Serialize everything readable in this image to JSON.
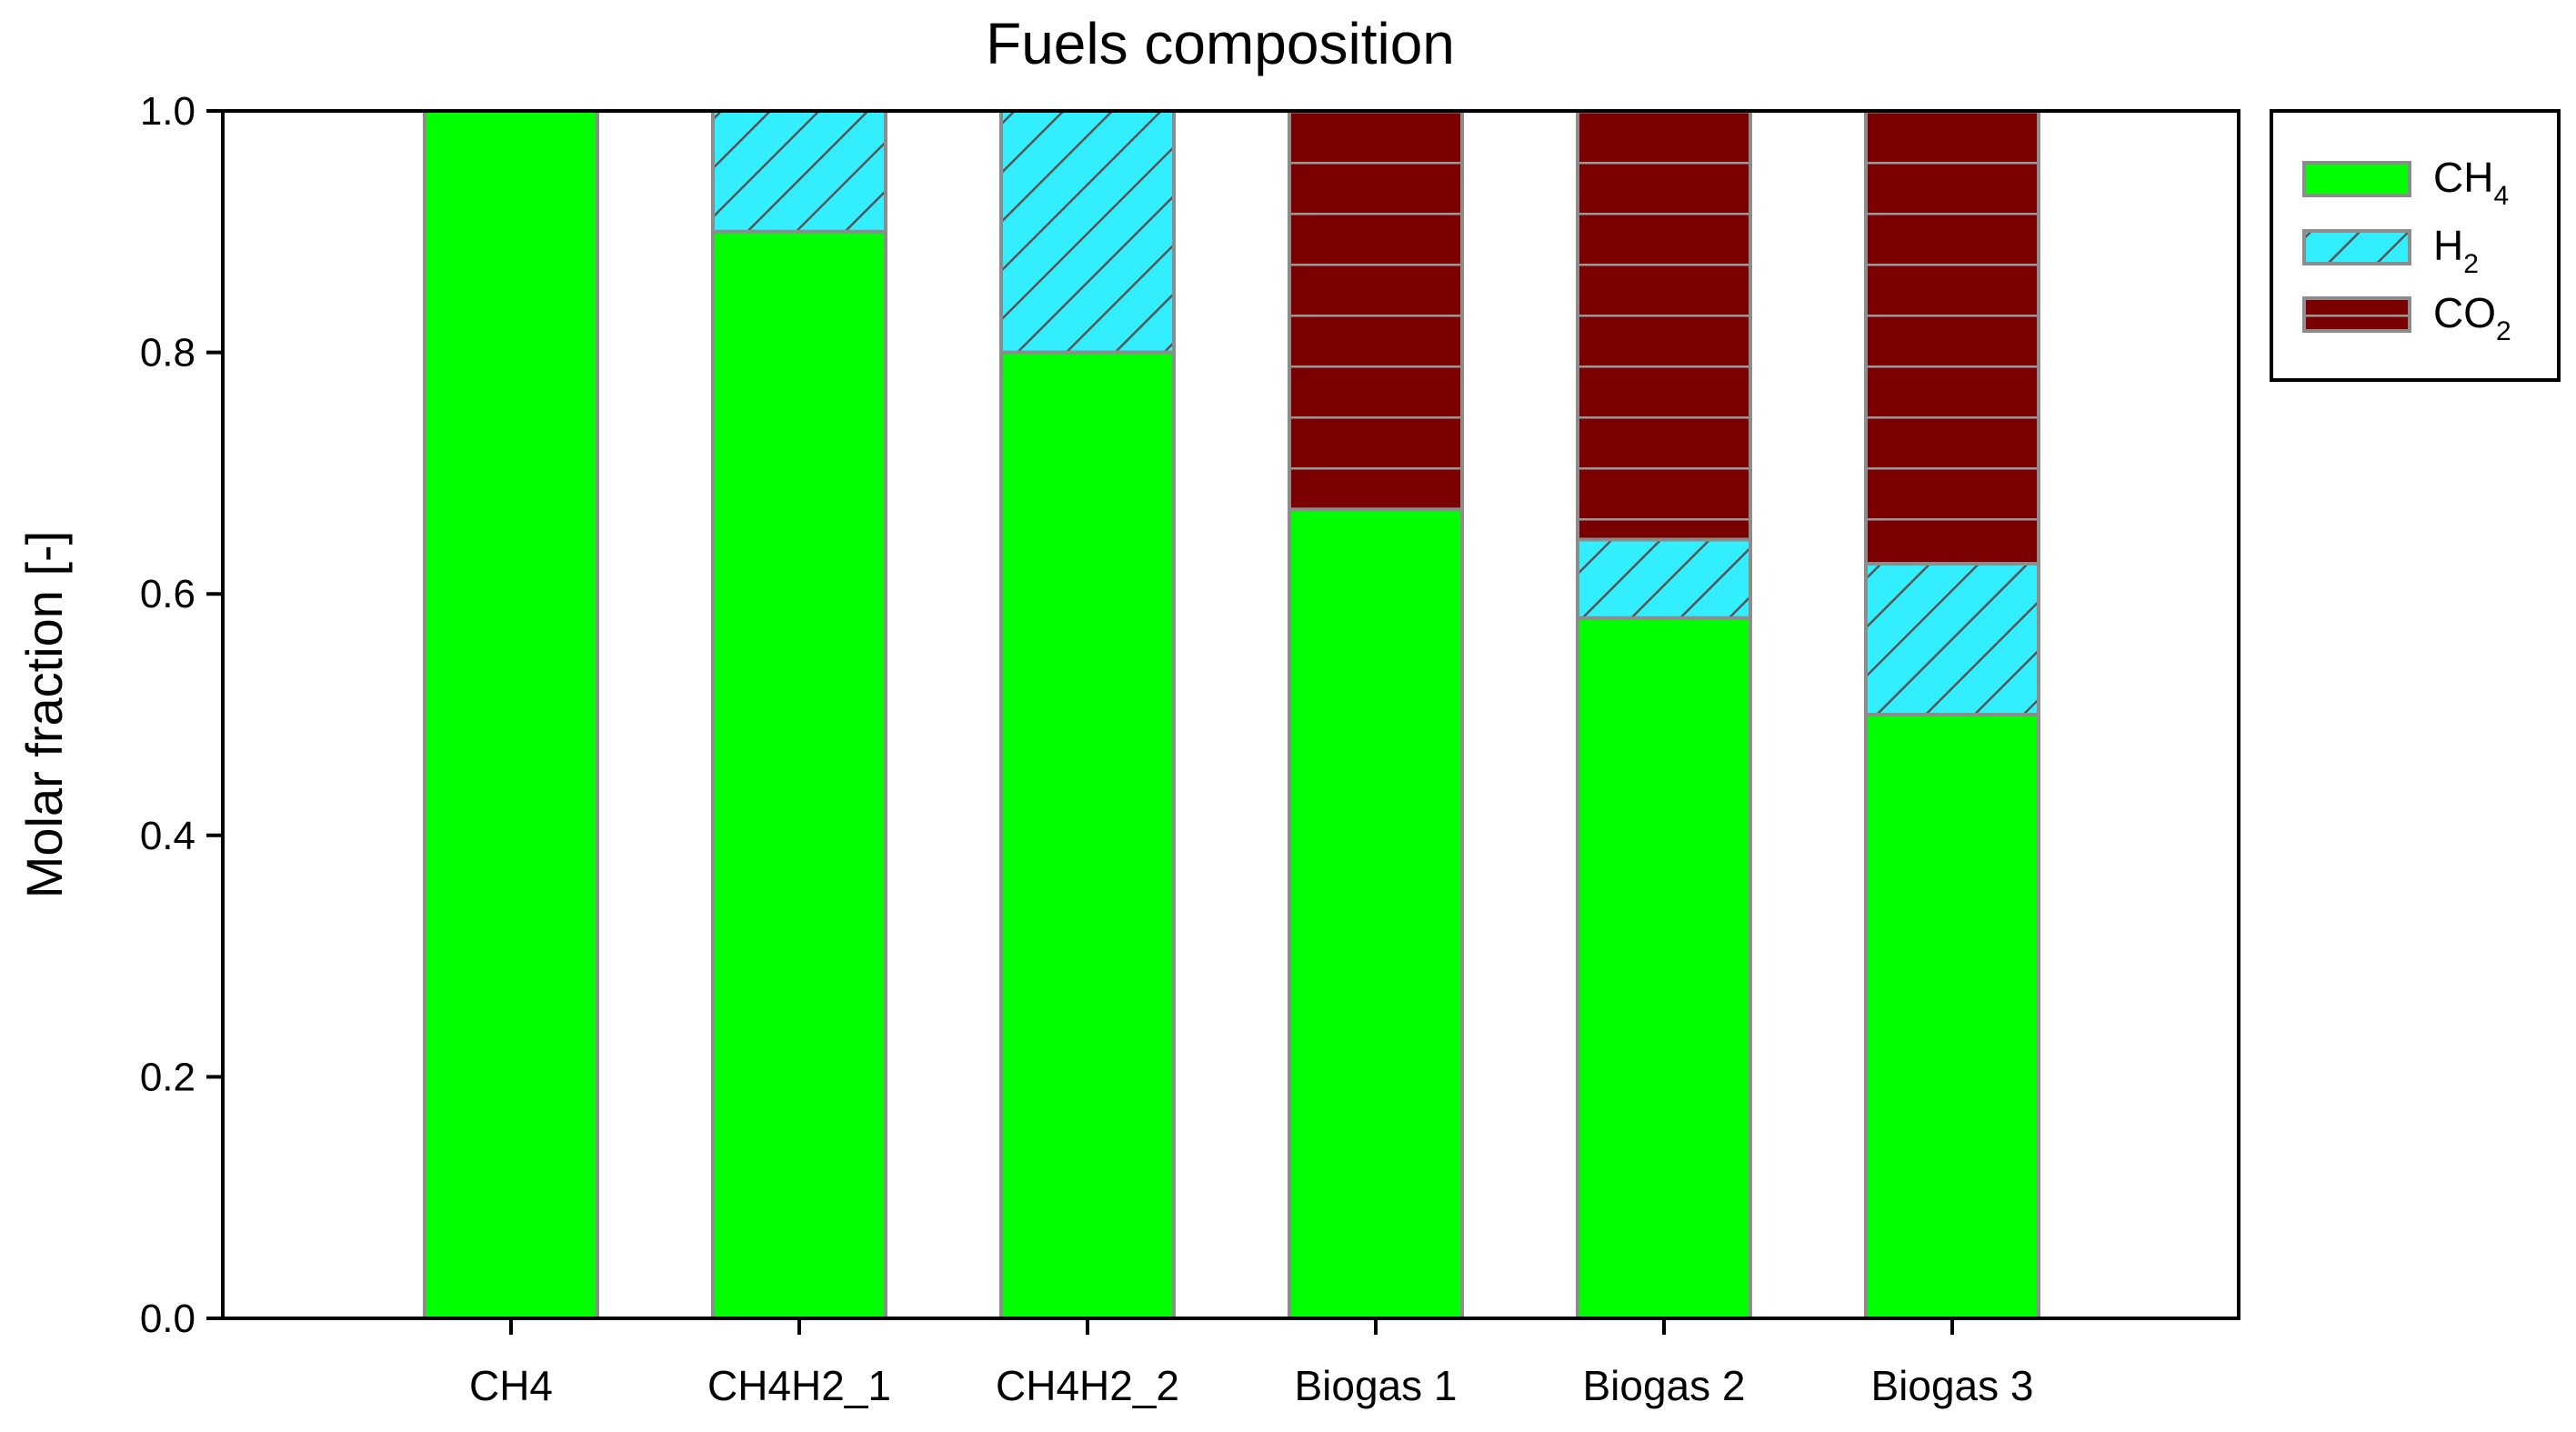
{
  "chart_data": {
    "type": "bar",
    "stacked": true,
    "title": "Fuels composition",
    "xlabel": "",
    "ylabel": "Molar fraction [-]",
    "ylim": [
      0,
      1.0
    ],
    "yticks": [
      "0.0",
      "0.2",
      "0.4",
      "0.6",
      "0.8",
      "1.0"
    ],
    "categories": [
      "CH4",
      "CH4H2_1",
      "CH4H2_2",
      "Biogas 1",
      "Biogas 2",
      "Biogas 3"
    ],
    "series": [
      {
        "name": "CH4",
        "base": "CH",
        "sub": "4",
        "color": "#00ff00",
        "pattern": "solid",
        "values": [
          1.0,
          0.9,
          0.8,
          0.67,
          0.58,
          0.5
        ]
      },
      {
        "name": "H2",
        "base": "H",
        "sub": "2",
        "color": "#33eeff",
        "pattern": "diagonal-hatch",
        "values": [
          0.0,
          0.1,
          0.2,
          0.0,
          0.065,
          0.125
        ]
      },
      {
        "name": "CO2",
        "base": "CO",
        "sub": "2",
        "color": "#7a0000",
        "pattern": "horizontal-lines",
        "values": [
          0.0,
          0.0,
          0.0,
          0.33,
          0.355,
          0.375
        ]
      }
    ],
    "legend": {
      "position": "top-right, outside plot"
    },
    "grid": false
  }
}
